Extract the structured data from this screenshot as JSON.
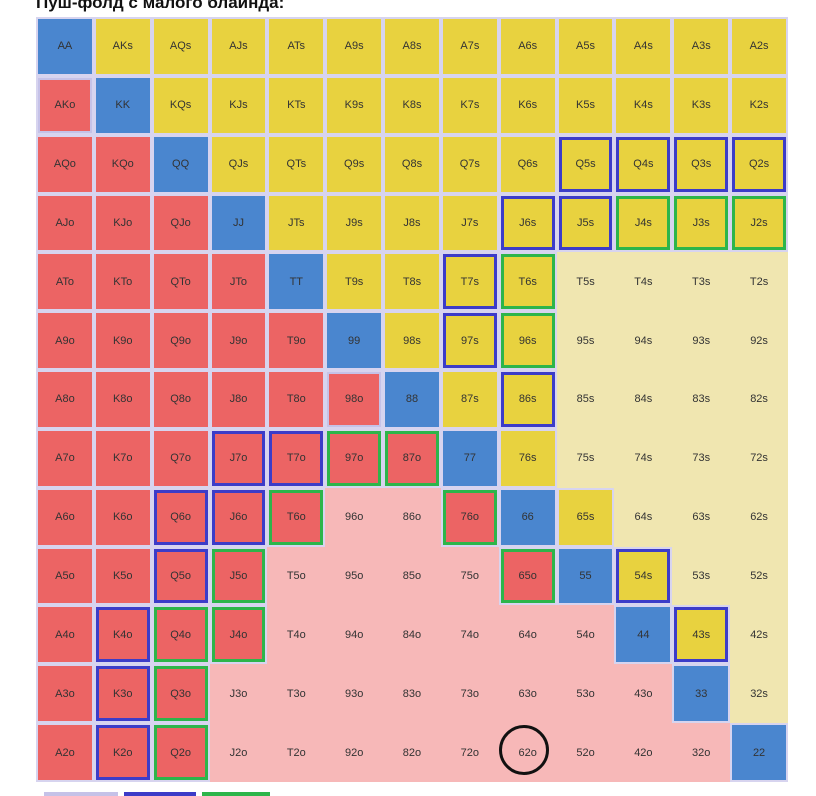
{
  "title": "Пуш-фолд с малого блаинда:",
  "colors": {
    "pair": "#4a86cf",
    "suited": "#e8d23f",
    "offsuit": "#ec6464",
    "fold_suited": "#f0e6b0",
    "fold_offsuit": "#f7b8b8",
    "border_blue": "#3c3cc8",
    "border_green": "#2db54a",
    "border_lavender": "#c5c2e8"
  },
  "ranks": [
    "A",
    "K",
    "Q",
    "J",
    "T",
    "9",
    "8",
    "7",
    "6",
    "5",
    "4",
    "3",
    "2"
  ],
  "grid": [
    [
      "AA",
      "AKs",
      "AQs",
      "AJs",
      "ATs",
      "A9s",
      "A8s",
      "A7s",
      "A6s",
      "A5s",
      "A4s",
      "A3s",
      "A2s"
    ],
    [
      "AKo",
      "KK",
      "KQs",
      "KJs",
      "KTs",
      "K9s",
      "K8s",
      "K7s",
      "K6s",
      "K5s",
      "K4s",
      "K3s",
      "K2s"
    ],
    [
      "AQo",
      "KQo",
      "QQ",
      "QJs",
      "QTs",
      "Q9s",
      "Q8s",
      "Q7s",
      "Q6s",
      "Q5s",
      "Q4s",
      "Q3s",
      "Q2s"
    ],
    [
      "AJo",
      "KJo",
      "QJo",
      "JJ",
      "JTs",
      "J9s",
      "J8s",
      "J7s",
      "J6s",
      "J5s",
      "J4s",
      "J3s",
      "J2s"
    ],
    [
      "ATo",
      "KTo",
      "QTo",
      "JTo",
      "TT",
      "T9s",
      "T8s",
      "T7s",
      "T6s",
      "T5s",
      "T4s",
      "T3s",
      "T2s"
    ],
    [
      "A9o",
      "K9o",
      "Q9o",
      "J9o",
      "T9o",
      "99",
      "98s",
      "97s",
      "96s",
      "95s",
      "94s",
      "93s",
      "92s"
    ],
    [
      "A8o",
      "K8o",
      "Q8o",
      "J8o",
      "T8o",
      "98o",
      "88",
      "87s",
      "86s",
      "85s",
      "84s",
      "83s",
      "82s"
    ],
    [
      "A7o",
      "K7o",
      "Q7o",
      "J7o",
      "T7o",
      "97o",
      "87o",
      "77",
      "76s",
      "75s",
      "74s",
      "73s",
      "72s"
    ],
    [
      "A6o",
      "K6o",
      "Q6o",
      "J6o",
      "T6o",
      "96o",
      "86o",
      "76o",
      "66",
      "65s",
      "64s",
      "63s",
      "62s"
    ],
    [
      "A5o",
      "K5o",
      "Q5o",
      "J5o",
      "T5o",
      "95o",
      "85o",
      "75o",
      "65o",
      "55",
      "54s",
      "53s",
      "52s"
    ],
    [
      "A4o",
      "K4o",
      "Q4o",
      "J4o",
      "T4o",
      "94o",
      "84o",
      "74o",
      "64o",
      "54o",
      "44",
      "43s",
      "42s"
    ],
    [
      "A3o",
      "K3o",
      "Q3o",
      "J3o",
      "T3o",
      "93o",
      "83o",
      "73o",
      "63o",
      "53o",
      "43o",
      "33",
      "32s"
    ],
    [
      "A2o",
      "K2o",
      "Q2o",
      "J2o",
      "T2o",
      "92o",
      "82o",
      "72o",
      "62o",
      "52o",
      "42o",
      "32o",
      "22"
    ]
  ],
  "fold_hands": [
    "T5s",
    "T4s",
    "T3s",
    "T2s",
    "95s",
    "94s",
    "93s",
    "92s",
    "85s",
    "84s",
    "83s",
    "82s",
    "75s",
    "74s",
    "73s",
    "72s",
    "64s",
    "63s",
    "62s",
    "53s",
    "52s",
    "42s",
    "32s",
    "96o",
    "86o",
    "T5o",
    "95o",
    "85o",
    "75o",
    "T4o",
    "94o",
    "84o",
    "74o",
    "64o",
    "54o",
    "J3o",
    "T3o",
    "93o",
    "83o",
    "73o",
    "63o",
    "53o",
    "43o",
    "J2o",
    "T2o",
    "92o",
    "82o",
    "72o",
    "62o",
    "52o",
    "42o",
    "32o"
  ],
  "blue_border_hands": [
    "Q5s",
    "Q4s",
    "Q3s",
    "Q2s",
    "J6s",
    "J5s",
    "T7s",
    "97s",
    "86s",
    "J7o",
    "T7o",
    "Q6o",
    "J6o",
    "Q5o",
    "54s",
    "K4o",
    "43s",
    "K3o",
    "K2o"
  ],
  "green_border_hands": [
    "J4s",
    "J3s",
    "J2s",
    "T6s",
    "96s",
    "97o",
    "87o",
    "T6o",
    "76o",
    "65o",
    "J5o",
    "Q4o",
    "J4o",
    "Q3o",
    "Q2o"
  ],
  "lavender_border_hands": [
    "AKo",
    "98o"
  ],
  "circled_hand": "62o"
}
